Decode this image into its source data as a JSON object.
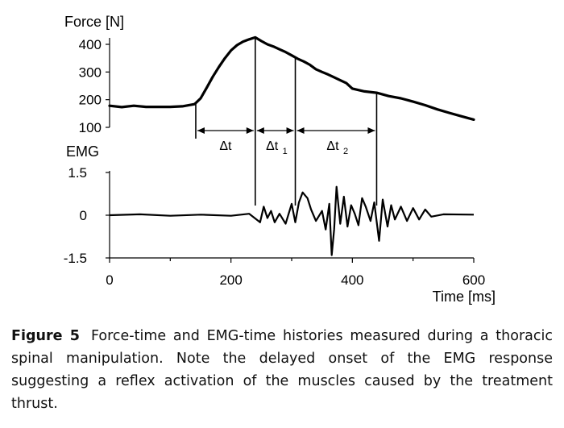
{
  "chart_data": [
    {
      "type": "line",
      "panel": "force",
      "ylabel": "Force [N]",
      "ylim": [
        100,
        430
      ],
      "yticks": [
        100,
        200,
        300,
        400
      ],
      "xlim": [
        0,
        600
      ],
      "x": [
        0,
        20,
        40,
        60,
        80,
        100,
        120,
        140,
        150,
        160,
        170,
        180,
        190,
        200,
        210,
        220,
        230,
        240,
        250,
        260,
        270,
        280,
        290,
        300,
        310,
        320,
        330,
        340,
        350,
        360,
        370,
        380,
        390,
        400,
        420,
        440,
        460,
        480,
        500,
        520,
        540,
        560,
        580,
        600
      ],
      "y": [
        178,
        173,
        178,
        174,
        174,
        174,
        176,
        184,
        205,
        243,
        283,
        318,
        350,
        378,
        397,
        410,
        418,
        425,
        412,
        400,
        392,
        382,
        372,
        360,
        348,
        338,
        326,
        310,
        300,
        291,
        281,
        270,
        260,
        240,
        230,
        225,
        213,
        205,
        193,
        180,
        165,
        152,
        140,
        128
      ],
      "cursors_ms": [
        142,
        240,
        306,
        440
      ],
      "intervals": [
        {
          "label": "Δt",
          "sub": "",
          "from": 142,
          "to": 240
        },
        {
          "label": "Δt",
          "sub": "1",
          "from": 240,
          "to": 306
        },
        {
          "label": "Δt",
          "sub": "2",
          "from": 306,
          "to": 440
        }
      ]
    },
    {
      "type": "line",
      "panel": "emg",
      "ylabel": "EMG",
      "ylim": [
        -1.5,
        1.5
      ],
      "yticks": [
        1.5,
        0,
        -1.5
      ],
      "ytick_labels": [
        "1.5",
        "0",
        "-1.5"
      ],
      "xlim": [
        0,
        600
      ],
      "xticks": [
        0,
        200,
        400,
        600
      ],
      "xtick_labels": [
        "0",
        "200",
        "400",
        "600"
      ],
      "xlabel": "Time [ms]",
      "x": [
        0,
        50,
        100,
        150,
        200,
        230,
        248,
        254,
        260,
        266,
        272,
        280,
        290,
        300,
        306,
        312,
        318,
        322,
        326,
        332,
        340,
        350,
        356,
        362,
        366,
        370,
        374,
        380,
        386,
        392,
        398,
        404,
        410,
        416,
        422,
        430,
        436,
        444,
        450,
        458,
        464,
        470,
        480,
        490,
        500,
        510,
        520,
        530,
        550,
        600
      ],
      "y": [
        0,
        0.03,
        -0.02,
        0.02,
        -0.02,
        0.05,
        -0.25,
        0.3,
        -0.1,
        0.15,
        -0.25,
        0.05,
        -0.3,
        0.4,
        -0.25,
        0.45,
        0.8,
        0.7,
        0.6,
        0.2,
        -0.2,
        0.15,
        -0.5,
        0.4,
        -1.4,
        -0.5,
        1.0,
        -0.3,
        0.65,
        -0.4,
        0.35,
        0.05,
        -0.35,
        0.6,
        0.3,
        -0.2,
        0.45,
        -0.9,
        0.55,
        -0.4,
        0.35,
        -0.15,
        0.3,
        -0.2,
        0.25,
        -0.15,
        0.2,
        -0.05,
        0.03,
        0.02
      ]
    }
  ],
  "caption": {
    "figure_label": "Figure 5",
    "text": "Force-time and EMG-time histories measured during a thoracic spinal manipulation. Note the delayed onset of the EMG response suggesting a reflex activation of the muscles caused by the treatment thrust."
  }
}
